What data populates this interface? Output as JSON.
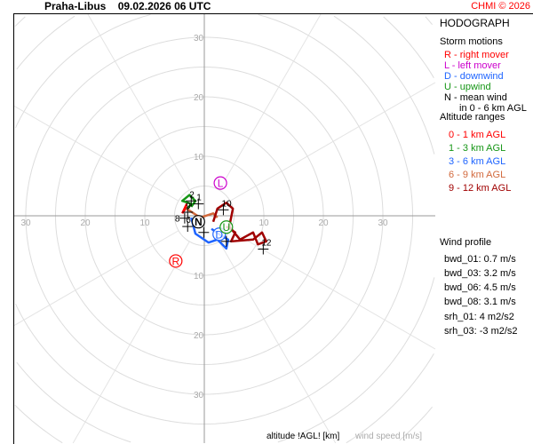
{
  "header": {
    "station": "Praha-Libus",
    "datetime": "09.02.2026 06 UTC",
    "credit": "CHMI © 2026"
  },
  "panel": {
    "title": "HODOGRAPH",
    "storm_motions_title": "Storm motions",
    "storm_motions": [
      {
        "text": "R - right mover",
        "color": "#ff0000"
      },
      {
        "text": "L - left mover",
        "color": "#cc00cc"
      },
      {
        "text": "D - downwind",
        "color": "#1e64ff"
      },
      {
        "text": "U - upwind",
        "color": "#169616"
      },
      {
        "text": "N - mean wind",
        "color": "#000000"
      },
      {
        "text": "in 0 - 6 km AGL",
        "color": "#000000"
      }
    ],
    "altitude_title": "Altitude ranges",
    "altitude_ranges": [
      {
        "text": "0 - 1 km AGL",
        "color": "#ff0000"
      },
      {
        "text": "1 - 3 km AGL",
        "color": "#169616"
      },
      {
        "text": "3 - 6 km AGL",
        "color": "#1e64ff"
      },
      {
        "text": "6 - 9 km AGL",
        "color": "#d2693c"
      },
      {
        "text": "9 - 12 km AGL",
        "color": "#a00000"
      }
    ],
    "wind_profile_title": "Wind profile",
    "wind_profile": [
      "bwd_01: 0.7 m/s",
      "bwd_03: 3.2 m/s",
      "bwd_06: 4.5 m/s",
      "bwd_08: 3.1 m/s"
    ],
    "helicity": [
      "srh_01: 4 m2/s2",
      "srh_03: -3 m2/s2"
    ]
  },
  "footer": {
    "altitude_label": "altitude !AGL! [km]",
    "speed_label": "wind speed [m/s]"
  },
  "chart_data": {
    "type": "line",
    "title": "HODOGRAPH",
    "units": "m/s",
    "rings": [
      5,
      10,
      15,
      20,
      25,
      30,
      35,
      40,
      45,
      50
    ],
    "ring_labels": [
      "10",
      "20",
      "30"
    ],
    "ring_label_values": [
      10,
      20,
      30
    ],
    "series": [
      {
        "name": "0 - 1 km AGL",
        "color": "#ff0000",
        "points": [
          [
            -3.7,
            0.4
          ],
          [
            -3.0,
            1.9
          ],
          [
            -3.3,
            1.0
          ],
          [
            -3.6,
            0.6
          ]
        ]
      },
      {
        "name": "1 - 3 km AGL",
        "color": "#169616",
        "points": [
          [
            -3.0,
            1.0
          ],
          [
            -2.2,
            2.0
          ],
          [
            -3.7,
            2.5
          ],
          [
            -2.5,
            3.5
          ],
          [
            -1.5,
            2.5
          ],
          [
            -2.2,
            1.5
          ]
        ]
      },
      {
        "name": "3 - 6 km AGL",
        "color": "#1e64ff",
        "points": [
          [
            -2.2,
            -0.3
          ],
          [
            -1.5,
            -3.0
          ],
          [
            0.7,
            -4.5
          ],
          [
            2.2,
            -4.0
          ],
          [
            3.7,
            -5.5
          ],
          [
            4.0,
            -4.0
          ],
          [
            2.8,
            -3.3
          ],
          [
            1.2,
            -2.2
          ]
        ]
      },
      {
        "name": "6 - 9 km AGL",
        "color": "#d2693c",
        "points": [
          [
            -3.0,
            1.2
          ],
          [
            -0.7,
            -0.3
          ],
          [
            1.5,
            0.4
          ],
          [
            2.2,
            -0.3
          ]
        ]
      },
      {
        "name": "9 - 12 km AGL",
        "color": "#a00000",
        "points": [
          [
            1.5,
            -1.0
          ],
          [
            2.2,
            1.2
          ],
          [
            3.7,
            2.2
          ],
          [
            4.8,
            1.2
          ],
          [
            4.2,
            -1.8
          ],
          [
            6.0,
            -4.0
          ],
          [
            8.2,
            -2.8
          ],
          [
            9.0,
            -4.8
          ],
          [
            10.4,
            -4.3
          ],
          [
            9.7,
            -2.8
          ],
          [
            8.2,
            -4.0
          ],
          [
            4.5,
            -4.3
          ],
          [
            5.2,
            -2.8
          ],
          [
            3.7,
            -1.8
          ]
        ]
      }
    ],
    "altitude_markers": [
      {
        "label": "1",
        "u": -1.0,
        "v": 2.0
      },
      {
        "label": "2",
        "u": -2.2,
        "v": 2.5
      },
      {
        "label": "9",
        "u": -2.8,
        "v": 0.6
      },
      {
        "label": "8",
        "u": -3.3,
        "v": -0.4
      },
      {
        "label": "6",
        "u": -2.8,
        "v": -1.8
      },
      {
        "label": "10",
        "u": 3.2,
        "v": 1.0
      },
      {
        "label": "12",
        "u": 9.9,
        "v": -5.6
      },
      {
        "label": "",
        "u": -0.1,
        "v": -2.8
      },
      {
        "label": "",
        "u": 3.7,
        "v": -4.3
      }
    ],
    "storm_motions": [
      {
        "label": "R",
        "u": -4.8,
        "v": -7.6,
        "color": "#ff0000"
      },
      {
        "label": "L",
        "u": 2.7,
        "v": 5.5,
        "color": "#cc00cc"
      },
      {
        "label": "D",
        "u": 2.5,
        "v": -3.1,
        "color": "#1e64ff"
      },
      {
        "label": "U",
        "u": 3.7,
        "v": -1.9,
        "color": "#169616"
      },
      {
        "label": "N",
        "u": -1.0,
        "v": -1.0,
        "color": "#000000"
      }
    ]
  }
}
